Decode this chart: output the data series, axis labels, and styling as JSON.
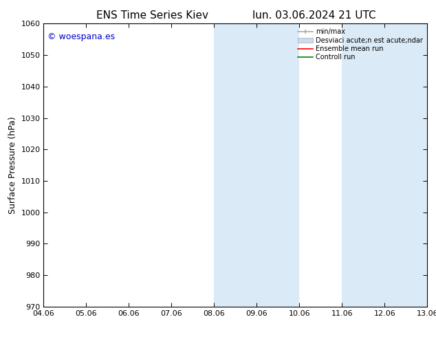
{
  "title_left": "ENS Time Series Kiev",
  "title_right": "lun. 03.06.2024 21 UTC",
  "ylabel": "Surface Pressure (hPa)",
  "ylim": [
    970,
    1060
  ],
  "yticks": [
    970,
    980,
    990,
    1000,
    1010,
    1020,
    1030,
    1040,
    1050,
    1060
  ],
  "xtick_labels": [
    "04.06",
    "05.06",
    "06.06",
    "07.06",
    "08.06",
    "09.06",
    "10.06",
    "11.06",
    "12.06",
    "13.06"
  ],
  "xtick_positions": [
    0,
    1,
    2,
    3,
    4,
    5,
    6,
    7,
    8,
    9
  ],
  "xlim": [
    0,
    9
  ],
  "shaded_regions": [
    {
      "xstart": 4.0,
      "xend": 5.0,
      "color": "#daeaf7"
    },
    {
      "xstart": 5.0,
      "xend": 6.0,
      "color": "#daeaf7"
    },
    {
      "xstart": 7.0,
      "xend": 8.0,
      "color": "#daeaf7"
    },
    {
      "xstart": 8.0,
      "xend": 9.0,
      "color": "#daeaf7"
    }
  ],
  "legend_labels": [
    "min/max",
    "Desviaci acute;n est acute;ndar",
    "Ensemble mean run",
    "Controll run"
  ],
  "legend_colors": [
    "#aaaaaa",
    "#c8ddf0",
    "red",
    "green"
  ],
  "watermark_text": "© woespana.es",
  "watermark_color": "#0000cc",
  "watermark_fontsize": 9,
  "background_color": "#ffffff",
  "title_fontsize": 11,
  "axis_label_fontsize": 9,
  "tick_fontsize": 8
}
